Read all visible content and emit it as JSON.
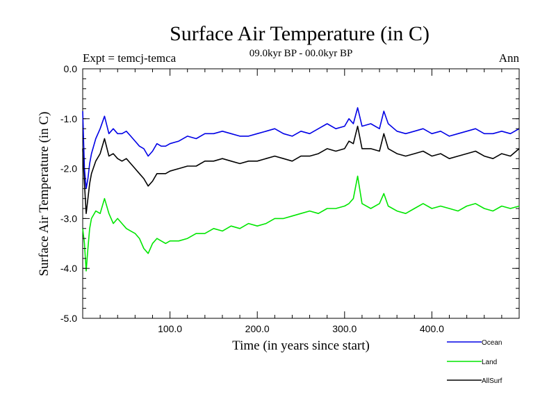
{
  "chart_data": {
    "type": "line",
    "title": "Surface Air Temperature (in C)",
    "subtitle": "09.0kyr BP - 00.0kyr BP",
    "left_label": "Expt = temcj-temca",
    "right_label": "Ann",
    "xlabel": "Time (in years since start)",
    "ylabel": "Surface Air Temperature (in C)",
    "xlim": [
      0,
      500
    ],
    "ylim": [
      -5.0,
      0.0
    ],
    "x_ticks": [
      100,
      200,
      300,
      400
    ],
    "x_tick_labels": [
      "100.0",
      "200.0",
      "300.0",
      "400.0"
    ],
    "y_ticks": [
      0,
      -1,
      -2,
      -3,
      -4,
      -5
    ],
    "y_tick_labels": [
      "0.0",
      "-1.0",
      "-2.0",
      "-3.0",
      "-4.0",
      "-5.0"
    ],
    "legend_position": "bottom-right",
    "series": [
      {
        "name": "Ocean",
        "color": "#0000e6",
        "x": [
          0,
          2,
          4,
          6,
          8,
          10,
          15,
          20,
          25,
          30,
          35,
          40,
          45,
          50,
          55,
          60,
          65,
          70,
          75,
          80,
          85,
          90,
          95,
          100,
          110,
          120,
          130,
          140,
          150,
          160,
          170,
          180,
          190,
          200,
          210,
          220,
          230,
          240,
          250,
          260,
          270,
          280,
          290,
          300,
          305,
          310,
          315,
          320,
          330,
          340,
          345,
          350,
          360,
          370,
          380,
          390,
          400,
          410,
          420,
          430,
          440,
          450,
          460,
          470,
          480,
          490,
          500
        ],
        "values": [
          -0.85,
          -2.0,
          -2.4,
          -2.2,
          -1.9,
          -1.7,
          -1.4,
          -1.2,
          -0.95,
          -1.3,
          -1.2,
          -1.3,
          -1.3,
          -1.25,
          -1.35,
          -1.45,
          -1.55,
          -1.6,
          -1.75,
          -1.65,
          -1.5,
          -1.55,
          -1.55,
          -1.5,
          -1.45,
          -1.35,
          -1.4,
          -1.3,
          -1.3,
          -1.25,
          -1.3,
          -1.35,
          -1.35,
          -1.3,
          -1.25,
          -1.2,
          -1.3,
          -1.35,
          -1.25,
          -1.3,
          -1.2,
          -1.1,
          -1.2,
          -1.15,
          -1.0,
          -1.1,
          -0.78,
          -1.15,
          -1.1,
          -1.2,
          -0.85,
          -1.1,
          -1.25,
          -1.3,
          -1.25,
          -1.2,
          -1.3,
          -1.25,
          -1.35,
          -1.3,
          -1.25,
          -1.2,
          -1.3,
          -1.3,
          -1.25,
          -1.3,
          -1.2
        ]
      },
      {
        "name": "Land",
        "color": "#00e600",
        "x": [
          0,
          2,
          4,
          6,
          8,
          10,
          15,
          20,
          25,
          30,
          35,
          40,
          45,
          50,
          55,
          60,
          65,
          70,
          75,
          80,
          85,
          90,
          95,
          100,
          110,
          120,
          130,
          140,
          150,
          160,
          170,
          180,
          190,
          200,
          210,
          220,
          230,
          240,
          250,
          260,
          270,
          280,
          290,
          300,
          305,
          310,
          315,
          320,
          330,
          340,
          345,
          350,
          360,
          370,
          380,
          390,
          400,
          410,
          420,
          430,
          440,
          450,
          460,
          470,
          480,
          490,
          500
        ],
        "values": [
          -3.2,
          -3.5,
          -4.05,
          -3.6,
          -3.2,
          -3.0,
          -2.85,
          -2.9,
          -2.6,
          -2.9,
          -3.1,
          -3.0,
          -3.1,
          -3.2,
          -3.25,
          -3.3,
          -3.4,
          -3.6,
          -3.7,
          -3.5,
          -3.4,
          -3.45,
          -3.5,
          -3.45,
          -3.45,
          -3.4,
          -3.3,
          -3.3,
          -3.2,
          -3.25,
          -3.15,
          -3.2,
          -3.1,
          -3.15,
          -3.1,
          -3.0,
          -3.0,
          -2.95,
          -2.9,
          -2.85,
          -2.9,
          -2.8,
          -2.8,
          -2.75,
          -2.7,
          -2.6,
          -2.15,
          -2.7,
          -2.8,
          -2.7,
          -2.5,
          -2.75,
          -2.85,
          -2.9,
          -2.8,
          -2.7,
          -2.8,
          -2.75,
          -2.8,
          -2.85,
          -2.75,
          -2.7,
          -2.8,
          -2.85,
          -2.75,
          -2.8,
          -2.75
        ]
      },
      {
        "name": "AllSurf",
        "color": "#000000",
        "x": [
          0,
          2,
          4,
          6,
          8,
          10,
          15,
          20,
          25,
          30,
          35,
          40,
          45,
          50,
          55,
          60,
          65,
          70,
          75,
          80,
          85,
          90,
          95,
          100,
          110,
          120,
          130,
          140,
          150,
          160,
          170,
          180,
          190,
          200,
          210,
          220,
          230,
          240,
          250,
          260,
          270,
          280,
          290,
          300,
          305,
          310,
          315,
          320,
          330,
          340,
          345,
          350,
          360,
          370,
          380,
          390,
          400,
          410,
          420,
          430,
          440,
          450,
          460,
          470,
          480,
          490,
          500
        ],
        "values": [
          -1.6,
          -2.3,
          -2.9,
          -2.6,
          -2.3,
          -2.1,
          -1.85,
          -1.7,
          -1.4,
          -1.75,
          -1.7,
          -1.8,
          -1.85,
          -1.8,
          -1.9,
          -2.0,
          -2.1,
          -2.2,
          -2.35,
          -2.25,
          -2.1,
          -2.1,
          -2.1,
          -2.05,
          -2.0,
          -1.95,
          -1.95,
          -1.85,
          -1.85,
          -1.8,
          -1.85,
          -1.9,
          -1.85,
          -1.85,
          -1.8,
          -1.75,
          -1.8,
          -1.85,
          -1.75,
          -1.75,
          -1.7,
          -1.6,
          -1.65,
          -1.6,
          -1.45,
          -1.5,
          -1.15,
          -1.6,
          -1.6,
          -1.65,
          -1.3,
          -1.6,
          -1.7,
          -1.75,
          -1.7,
          -1.65,
          -1.75,
          -1.7,
          -1.8,
          -1.75,
          -1.7,
          -1.65,
          -1.75,
          -1.8,
          -1.7,
          -1.75,
          -1.6
        ]
      }
    ]
  }
}
